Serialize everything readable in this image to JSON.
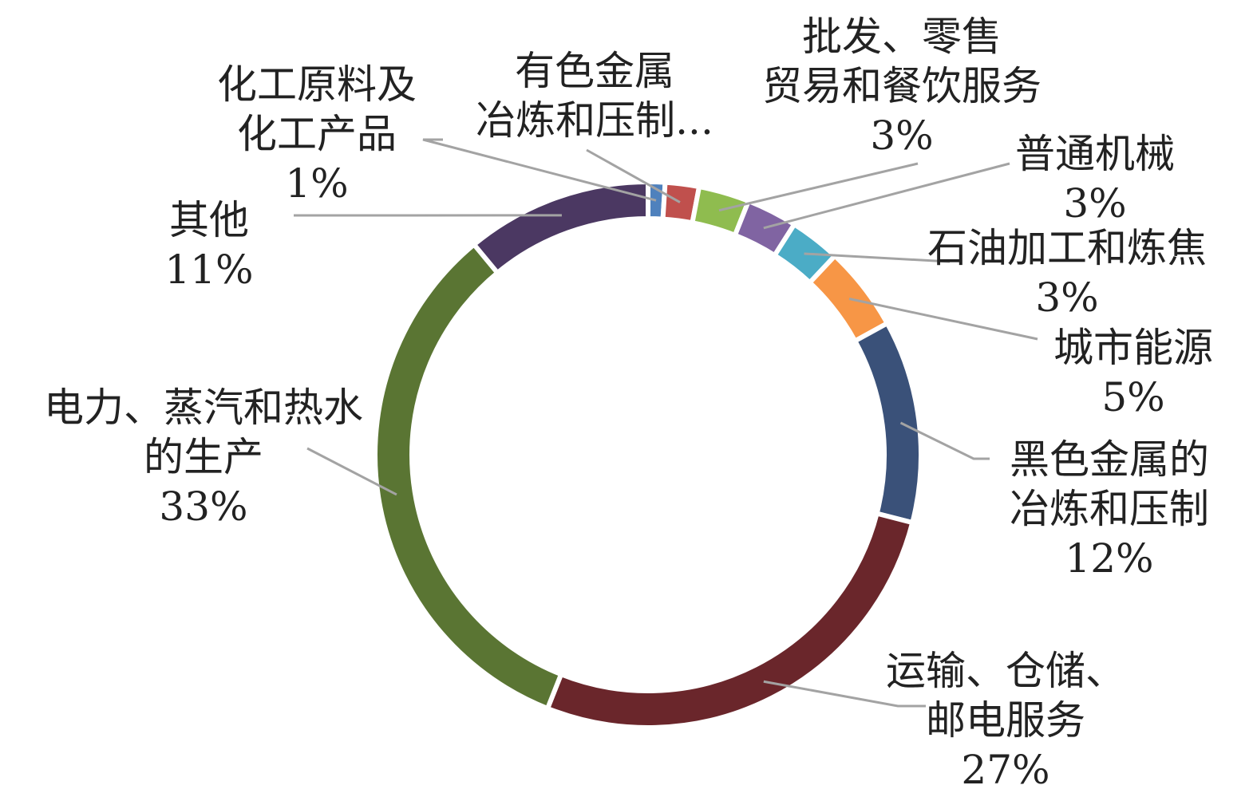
{
  "chart_data": {
    "type": "pie",
    "variant": "donut",
    "legend": "none",
    "start": "top",
    "direction": "clockwise",
    "slices": [
      {
        "label_lines": [
          "化工原料及",
          "化工产品"
        ],
        "value": 1,
        "value_label": "1%",
        "color": "#4f81bd"
      },
      {
        "label_lines": [
          "有色金属",
          "冶炼和压制..."
        ],
        "value": 2,
        "value_label": "",
        "color": "#c0504d"
      },
      {
        "label_lines": [
          "批发、零售",
          "贸易和餐饮服务"
        ],
        "value": 3,
        "value_label": "3%",
        "color": "#8fbc4f"
      },
      {
        "label_lines": [
          "普通机械"
        ],
        "value": 3,
        "value_label": "3%",
        "color": "#8064a2"
      },
      {
        "label_lines": [
          "石油加工和炼焦"
        ],
        "value": 3,
        "value_label": "3%",
        "color": "#4bacc6"
      },
      {
        "label_lines": [
          "城市能源"
        ],
        "value": 5,
        "value_label": "5%",
        "color": "#f79646"
      },
      {
        "label_lines": [
          "黑色金属的",
          "冶炼和压制"
        ],
        "value": 12,
        "value_label": "12%",
        "color": "#3a5179"
      },
      {
        "label_lines": [
          "运输、仓储、",
          "邮电服务"
        ],
        "value": 27,
        "value_label": "27%",
        "color": "#6a262b"
      },
      {
        "label_lines": [
          "电力、蒸汽和热水",
          "的生产"
        ],
        "value": 33,
        "value_label": "33%",
        "color": "#5a7533"
      },
      {
        "label_lines": [
          "其他"
        ],
        "value": 11,
        "value_label": "11%",
        "color": "#4b3862"
      }
    ]
  }
}
